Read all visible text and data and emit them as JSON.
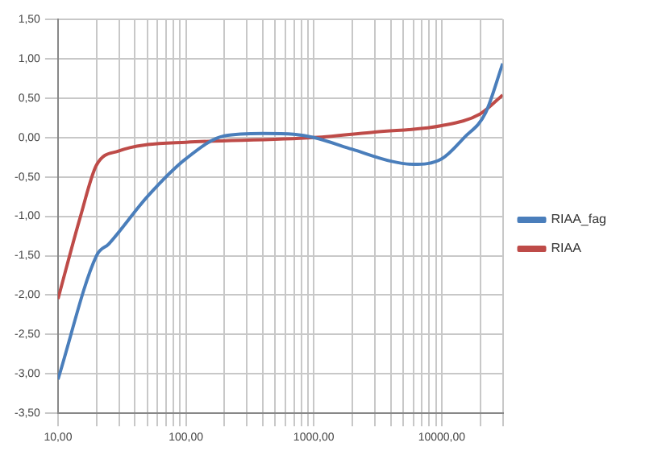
{
  "chart_data": {
    "type": "line",
    "log": "x",
    "grid": true,
    "legend": "right",
    "marker": "none",
    "line_style": "solid",
    "xlim": [
      10,
      30000
    ],
    "xticks": [
      {
        "value": 10,
        "label": "10,00"
      },
      {
        "value": 20,
        "label": null
      },
      {
        "value": 30,
        "label": null
      },
      {
        "value": 40,
        "label": null
      },
      {
        "value": 50,
        "label": null
      },
      {
        "value": 60,
        "label": null
      },
      {
        "value": 70,
        "label": null
      },
      {
        "value": 80,
        "label": null
      },
      {
        "value": 90,
        "label": null
      },
      {
        "value": 100,
        "label": "100,00"
      },
      {
        "value": 200,
        "label": null
      },
      {
        "value": 300,
        "label": null
      },
      {
        "value": 400,
        "label": null
      },
      {
        "value": 500,
        "label": null
      },
      {
        "value": 600,
        "label": null
      },
      {
        "value": 700,
        "label": null
      },
      {
        "value": 800,
        "label": null
      },
      {
        "value": 900,
        "label": null
      },
      {
        "value": 1000,
        "label": "1000,00"
      },
      {
        "value": 2000,
        "label": null
      },
      {
        "value": 3000,
        "label": null
      },
      {
        "value": 4000,
        "label": null
      },
      {
        "value": 5000,
        "label": null
      },
      {
        "value": 6000,
        "label": null
      },
      {
        "value": 7000,
        "label": null
      },
      {
        "value": 8000,
        "label": null
      },
      {
        "value": 9000,
        "label": null
      },
      {
        "value": 10000,
        "label": "10000,00"
      },
      {
        "value": 20000,
        "label": null
      },
      {
        "value": 30000,
        "label": null
      }
    ],
    "ylim": [
      -3.5,
      1.5
    ],
    "yticks": [
      {
        "value": -3.5,
        "label": "-3,50"
      },
      {
        "value": -3,
        "label": "-3,00"
      },
      {
        "value": -2.5,
        "label": "-2,50"
      },
      {
        "value": -2,
        "label": "-2,00"
      },
      {
        "value": -1.5,
        "label": "-1,50"
      },
      {
        "value": -1,
        "label": "-1,00"
      },
      {
        "value": -0.5,
        "label": "-0,50"
      },
      {
        "value": 0,
        "label": "0,00"
      },
      {
        "value": 0.5,
        "label": "0,50"
      },
      {
        "value": 1,
        "label": "1,00"
      },
      {
        "value": 1.5,
        "label": "1,50"
      }
    ],
    "series": [
      {
        "name": "RIAA_fag",
        "color": "#4a7ebb",
        "x": [
          10,
          20,
          25,
          50,
          100,
          200,
          400,
          700,
          1000,
          2000,
          4000,
          6000,
          10000,
          15000,
          22000,
          30000
        ],
        "values": [
          -3.07,
          -1.5,
          -1.35,
          -0.75,
          -0.27,
          0.02,
          0.05,
          0.04,
          0,
          -0.15,
          -0.3,
          -0.34,
          -0.27,
          0,
          0.31,
          0.94
        ]
      },
      {
        "name": "RIAA",
        "color": "#be4b48",
        "x": [
          10,
          15,
          20,
          30,
          50,
          100,
          1000,
          3000,
          10000,
          20000,
          30000
        ],
        "values": [
          -2.05,
          -1,
          -0.35,
          -0.17,
          -0.09,
          -0.06,
          0,
          0.07,
          0.15,
          0.3,
          0.54
        ]
      }
    ]
  }
}
